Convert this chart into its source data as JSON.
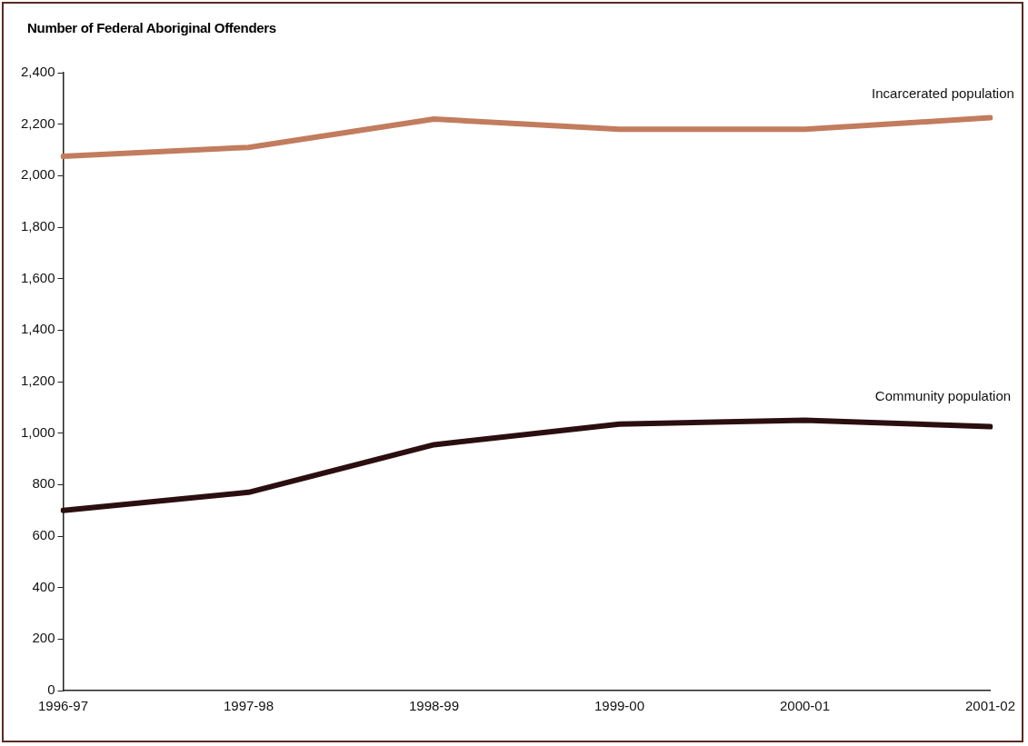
{
  "chart_data": {
    "type": "line",
    "title": "Number of Federal Aboriginal Offenders",
    "categories": [
      "1996-97",
      "1997-98",
      "1998-99",
      "1999-00",
      "2000-01",
      "2001-02"
    ],
    "series": [
      {
        "name": "Incarcerated population",
        "color": "#c27c5e",
        "values": [
          2075,
          2110,
          2220,
          2180,
          2180,
          2225
        ]
      },
      {
        "name": "Community population",
        "color": "#2b0f10",
        "values": [
          700,
          770,
          955,
          1035,
          1050,
          1025
        ]
      }
    ],
    "ylim": [
      0,
      2400
    ],
    "yticks": [
      0,
      200,
      400,
      600,
      800,
      {
        "value": 1000,
        "label": "1,000"
      },
      {
        "value": 1200,
        "label": "1,200"
      },
      {
        "value": 1400,
        "label": "1,400"
      },
      {
        "value": 1600,
        "label": "1,600"
      },
      {
        "value": 1800,
        "label": "1,800"
      },
      {
        "value": 2000,
        "label": "2,000"
      },
      {
        "value": 2200,
        "label": "2,200"
      },
      {
        "value": 2400,
        "label": "2,400"
      }
    ],
    "grid": false,
    "legend": false,
    "marker": "none",
    "line_style": "solid"
  }
}
